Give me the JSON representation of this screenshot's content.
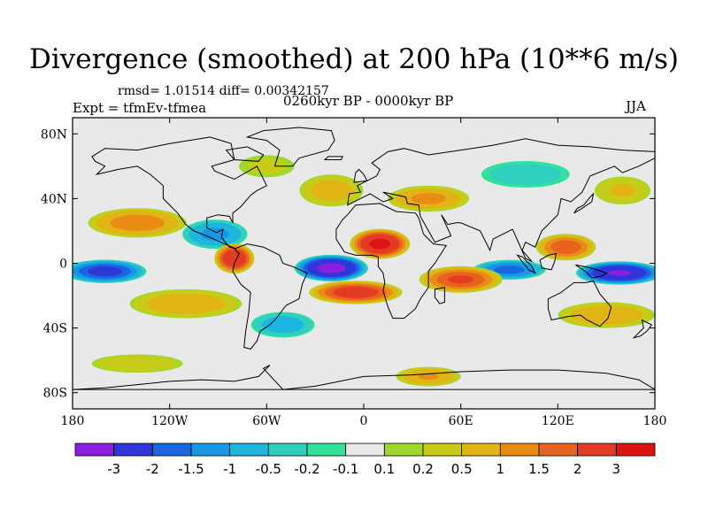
{
  "title": "Divergence (smoothed) at 200 hPa (10**6 m/s)",
  "stats": "rmsd= 1.01514 diff= 0.00342157",
  "expt": "Expt = tfmEv-tfmea",
  "period": "0260kyr BP - 0000kyr BP",
  "season": "JJA",
  "map": {
    "lon_range": [
      -180,
      180
    ],
    "lat_range": [
      -90,
      90
    ],
    "x_ticks": [
      {
        "lon": -180,
        "label": "180"
      },
      {
        "lon": -120,
        "label": "120W"
      },
      {
        "lon": -60,
        "label": "60W"
      },
      {
        "lon": 0,
        "label": "0"
      },
      {
        "lon": 60,
        "label": "60E"
      },
      {
        "lon": 120,
        "label": "120E"
      },
      {
        "lon": 180,
        "label": "180"
      }
    ],
    "y_ticks": [
      {
        "lat": 80,
        "label": "80N"
      },
      {
        "lat": 40,
        "label": "40N"
      },
      {
        "lat": 0,
        "label": "0"
      },
      {
        "lat": -40,
        "label": "40S"
      },
      {
        "lat": -80,
        "label": "80S"
      }
    ],
    "background_color": "#e8e8e8",
    "anomalies": [
      {
        "lon": -20,
        "lat": -3,
        "rlon": 22,
        "rlat": 8,
        "value": -3.5
      },
      {
        "lon": 158,
        "lat": -6,
        "rlon": 26,
        "rlat": 7,
        "value": -3.2
      },
      {
        "lon": -160,
        "lat": -5,
        "rlon": 25,
        "rlat": 7,
        "value": -2.4
      },
      {
        "lon": 90,
        "lat": -4,
        "rlon": 22,
        "rlat": 6,
        "value": -1.8
      },
      {
        "lon": -92,
        "lat": 18,
        "rlon": 20,
        "rlat": 9,
        "value": -1.2
      },
      {
        "lon": 10,
        "lat": 12,
        "rlon": 18,
        "rlat": 9,
        "value": 3.4
      },
      {
        "lon": -5,
        "lat": -18,
        "rlon": 28,
        "rlat": 7,
        "value": 2.6
      },
      {
        "lon": -80,
        "lat": 3,
        "rlon": 12,
        "rlat": 9,
        "value": 3.0
      },
      {
        "lon": 60,
        "lat": -10,
        "rlon": 25,
        "rlat": 8,
        "value": 2.2
      },
      {
        "lon": 125,
        "lat": 10,
        "rlon": 18,
        "rlat": 8,
        "value": 2.0
      },
      {
        "lon": -140,
        "lat": 25,
        "rlon": 30,
        "rlat": 9,
        "value": 1.4
      },
      {
        "lon": 40,
        "lat": 40,
        "rlon": 25,
        "rlat": 8,
        "value": 1.2
      },
      {
        "lon": -20,
        "lat": 45,
        "rlon": 20,
        "rlat": 10,
        "value": 0.8
      },
      {
        "lon": -110,
        "lat": -25,
        "rlon": 35,
        "rlat": 9,
        "value": 0.9
      },
      {
        "lon": 150,
        "lat": -32,
        "rlon": 30,
        "rlat": 8,
        "value": 1.0
      },
      {
        "lon": -50,
        "lat": -38,
        "rlon": 20,
        "rlat": 8,
        "value": -0.8
      },
      {
        "lon": 100,
        "lat": 55,
        "rlon": 30,
        "rlat": 9,
        "value": -0.4
      },
      {
        "lon": 160,
        "lat": 45,
        "rlon": 18,
        "rlat": 9,
        "value": 0.6
      },
      {
        "lon": 40,
        "lat": -70,
        "rlon": 20,
        "rlat": 6,
        "value": 1.1
      },
      {
        "lon": -140,
        "lat": -62,
        "rlon": 30,
        "rlat": 6,
        "value": 0.5
      },
      {
        "lon": -60,
        "lat": 60,
        "rlon": 20,
        "rlat": 8,
        "value": 0.3
      }
    ]
  },
  "colorbar": {
    "labels": [
      "-3",
      "-2",
      "-1.5",
      "-1",
      "-0.5",
      "-0.2",
      "-0.1",
      "0.1",
      "0.2",
      "0.5",
      "1",
      "1.5",
      "2",
      "3"
    ],
    "colors": [
      "#8a1fe0",
      "#2e36d8",
      "#1866e2",
      "#1896e6",
      "#1eb6dc",
      "#30d0c0",
      "#30e29a",
      "#e8e8e8",
      "#9ed82a",
      "#c8cc18",
      "#e0b414",
      "#e88c14",
      "#e8641e",
      "#e43c24",
      "#de1414"
    ]
  }
}
